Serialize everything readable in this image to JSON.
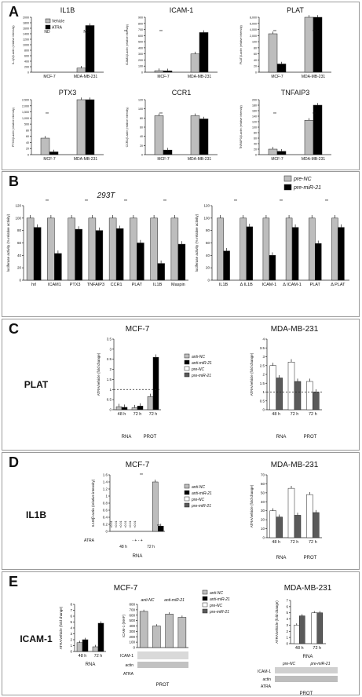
{
  "figure": {
    "panels": [
      {
        "letter": "A"
      },
      {
        "letter": "B"
      },
      {
        "letter": "C"
      },
      {
        "letter": "D"
      },
      {
        "letter": "E"
      }
    ]
  },
  "colors": {
    "grey": "#bdbdbd",
    "black": "#000000",
    "white": "#ffffff",
    "dark": "#5a5a5a"
  },
  "chart_data": [
    {
      "id": "A1",
      "type": "bar",
      "title": "IL1B",
      "ylabel": "IL-1β/β-actin (relative intensity)",
      "categories": [
        "MCF-7",
        "MDA-MB-231"
      ],
      "series": [
        {
          "name": "Vehicle",
          "values": [
            0,
            150
          ]
        },
        {
          "name": "ATRA",
          "values": [
            0,
            1700
          ]
        }
      ],
      "ylim": [
        0,
        2000
      ],
      "yticks": [
        0,
        200,
        400,
        600,
        800,
        1000,
        1200,
        1400,
        1600,
        1800,
        2000
      ],
      "annotations": [
        "ND",
        "ND",
        "**"
      ],
      "legend": "top-left"
    },
    {
      "id": "A2",
      "type": "bar",
      "title": "ICAM-1",
      "ylabel": "ICAM1/β-actin (relative intensity)",
      "categories": [
        "MCF-7",
        "MDA-MB-231"
      ],
      "series": [
        {
          "name": "Vehicle",
          "values": [
            25,
            300
          ]
        },
        {
          "name": "ATRA",
          "values": [
            22,
            650
          ]
        }
      ],
      "ylim": [
        0,
        900
      ],
      "yticks": [
        0,
        100,
        200,
        300,
        400,
        500,
        600,
        700,
        800,
        900
      ],
      "annotations": [
        "**"
      ]
    },
    {
      "id": "A3",
      "type": "bar",
      "title": "PLAT",
      "ylabel": "PLAT/β-actin (relative intensity)",
      "categories": [
        "MCF-7",
        "MDA-MB-231"
      ],
      "series": [
        {
          "name": "Vehicle",
          "values": [
            70,
            2600
          ]
        },
        {
          "name": "ATRA",
          "values": [
            15,
            6600
          ]
        }
      ],
      "yticks": [
        "0",
        "20",
        "40",
        "60",
        "80",
        "100",
        "2,000",
        "4,000",
        "6,000",
        "8,000"
      ],
      "annotations": [
        "**",
        "**"
      ]
    },
    {
      "id": "A4",
      "type": "bar",
      "title": "PTX3",
      "ylabel": "PTX3/β-actin (relative intensity)",
      "categories": [
        "MCF-7",
        "MDA-MB-231"
      ],
      "series": [
        {
          "name": "Vehicle",
          "values": [
            30,
            2000
          ]
        },
        {
          "name": "ATRA",
          "values": [
            5,
            1500
          ]
        }
      ],
      "yticks": [
        "0",
        "20",
        "40",
        "60",
        "80",
        "500",
        "1,000",
        "1,500",
        "2,000",
        "2,500"
      ],
      "annotations": [
        "**"
      ]
    },
    {
      "id": "A5",
      "type": "bar",
      "title": "CCR1",
      "ylabel": "CCR1/β-actin (relative intensity)",
      "categories": [
        "MCF-7",
        "MDA-MB-231"
      ],
      "series": [
        {
          "name": "Vehicle",
          "values": [
            85,
            85
          ]
        },
        {
          "name": "ATRA",
          "values": [
            10,
            78
          ]
        }
      ],
      "ylim": [
        0,
        120
      ],
      "yticks": [
        0,
        20,
        40,
        60,
        80,
        100,
        120
      ],
      "annotations": [
        "**"
      ]
    },
    {
      "id": "A6",
      "type": "bar",
      "title": "TNFAIP3",
      "ylabel": "TNFAIP3/β-actin (relative intensity)",
      "categories": [
        "MCF-7",
        "MDA-MB-231"
      ],
      "series": [
        {
          "name": "Vehicle",
          "values": [
            20,
            125
          ]
        },
        {
          "name": "ATRA",
          "values": [
            12,
            180
          ]
        }
      ],
      "ylim": [
        0,
        200
      ],
      "yticks": [
        0,
        20,
        40,
        60,
        80,
        100,
        120,
        140,
        160,
        180,
        200
      ],
      "annotations": [
        "**",
        "**"
      ]
    },
    {
      "id": "B1",
      "type": "bar",
      "title": "293T",
      "ylabel": "luciferase activity (% relative activity)",
      "categories": [
        "hrl",
        "ICAM1",
        "PTX3",
        "TNFAIP3",
        "CCR1",
        "PLAT",
        "IL1B",
        "Maspin"
      ],
      "series": [
        {
          "name": "pre-NC",
          "values": [
            100,
            100,
            100,
            100,
            100,
            100,
            100,
            100
          ]
        },
        {
          "name": "pre-miR-21",
          "values": [
            85,
            43,
            82,
            80,
            83,
            60,
            27,
            58
          ]
        }
      ],
      "ylim": [
        0,
        120
      ],
      "yticks": [
        0,
        20,
        40,
        60,
        80,
        100,
        120
      ],
      "annotations": [
        "**",
        "**",
        "**",
        "**"
      ]
    },
    {
      "id": "B2",
      "type": "bar",
      "ylabel": "luciferase activity (% relative activity)",
      "categories": [
        "IL1B",
        "Δ IL1B",
        "ICAM-1",
        "Δ ICAM-1",
        "PLAT",
        "Δ PLAT"
      ],
      "series": [
        {
          "name": "pre-NC",
          "values": [
            100,
            100,
            100,
            100,
            100,
            100
          ]
        },
        {
          "name": "pre-miR-21",
          "values": [
            47,
            86,
            40,
            85,
            59,
            85
          ]
        }
      ],
      "ylim": [
        0,
        120
      ],
      "yticks": [
        0,
        20,
        40,
        60,
        80,
        100,
        120
      ],
      "annotations": [
        "**",
        "**",
        "**"
      ],
      "legend_entries": [
        "pre-NC",
        "pre-miR-21"
      ]
    },
    {
      "id": "C1",
      "type": "bar",
      "title": "MCF-7",
      "row_label": "PLAT",
      "ylabel": "ATRA/vehicle (fold change)",
      "categories": [
        "48 h",
        "72 h",
        "72 h"
      ],
      "groups": [
        "RNA",
        "PROT"
      ],
      "series": [
        {
          "name": "anti-NC",
          "values": [
            0.15,
            0.1,
            0.65
          ]
        },
        {
          "name": "anti-miR-21",
          "values": [
            0.12,
            0.18,
            2.6
          ]
        }
      ],
      "ylim": [
        0,
        3.5
      ],
      "yticks": [
        0,
        0.5,
        1,
        1.5,
        2,
        2.5,
        3,
        3.5
      ],
      "annotations": [
        "(**)",
        "(**)"
      ],
      "legend_entries": [
        "anti-NC",
        "anti-miR-21",
        "pre-NC",
        "pre-miR-21"
      ]
    },
    {
      "id": "C2",
      "type": "bar",
      "title": "MDA-MB-231",
      "ylabel": "ATRA/vehicle (fold change)",
      "categories": [
        "48 h",
        "72 h",
        "72 h"
      ],
      "groups": [
        "RNA",
        "PROT"
      ],
      "series": [
        {
          "name": "pre-NC",
          "values": [
            2.5,
            2.7,
            1.6
          ]
        },
        {
          "name": "pre-miR-21",
          "values": [
            1.8,
            1.6,
            1.0
          ]
        }
      ],
      "ylim": [
        0,
        4
      ],
      "yticks": [
        0,
        0.5,
        1,
        1.5,
        2,
        2.5,
        3,
        3.5,
        4
      ],
      "annotations": [
        "(**)",
        "(**)",
        "(**)"
      ]
    },
    {
      "id": "D1",
      "type": "bar",
      "title": "MCF-7",
      "row_label": "IL1B",
      "ylabel": "IL1B/β-actin (relative intensity)",
      "categories": [
        "48 h -",
        "48 h +",
        "72 h -",
        "72 h +"
      ],
      "groups": [
        "RNA"
      ],
      "series": [
        {
          "name": "anti-NC",
          "values": [
            0,
            0,
            0,
            1.4
          ]
        },
        {
          "name": "anti-miR-21",
          "values": [
            0,
            0,
            0,
            0.15
          ]
        }
      ],
      "ylim": [
        0,
        1.6
      ],
      "yticks": [
        0,
        0.2,
        0.4,
        0.6,
        0.8,
        1,
        1.2,
        1.4,
        1.6
      ],
      "annotations": [
        "<0.01",
        "<0.01",
        "<0.01",
        "<0.01",
        "<0.01",
        "<0.01",
        "**",
        "**"
      ],
      "row_headers": [
        "ATRA",
        "- + - +",
        "48 h",
        "72 h",
        "RNA"
      ],
      "legend_entries": [
        "anti-NC",
        "anti-miR-21",
        "pre-NC",
        "pre-miR-21"
      ]
    },
    {
      "id": "D2",
      "type": "bar",
      "title": "MDA-MB-231",
      "ylabel": "ATRA/vehicle (fold change)",
      "categories": [
        "48 h",
        "72 h",
        "72 h"
      ],
      "groups": [
        "RNA",
        "PROT"
      ],
      "series": [
        {
          "name": "pre-NC",
          "values": [
            30,
            55,
            48
          ]
        },
        {
          "name": "pre-miR-21",
          "values": [
            23,
            25,
            28
          ]
        }
      ],
      "ylim": [
        0,
        70
      ],
      "yticks": [
        0,
        10,
        20,
        30,
        40,
        50,
        60,
        70
      ],
      "annotations": [
        "(**)",
        "(**)",
        "(**)"
      ]
    },
    {
      "id": "E1",
      "type": "bar",
      "title": "MCF-7",
      "row_label": "ICAM-1",
      "ylabel": "ATRA/vehicle (fold change)",
      "categories": [
        "48 h",
        "72 h"
      ],
      "groups": [
        "RNA"
      ],
      "series": [
        {
          "name": "anti-NC",
          "values": [
            1.5,
            0.8
          ]
        },
        {
          "name": "anti-miR-21",
          "values": [
            2.0,
            4.8
          ]
        }
      ],
      "ylim": [
        0,
        8
      ],
      "yticks": [
        0,
        1,
        2,
        3,
        4,
        5,
        6,
        7,
        8
      ],
      "annotations": [
        "(**)"
      ]
    },
    {
      "id": "E2",
      "type": "bar",
      "ylabel": "ICAM-1 (MAF)",
      "categories": [
        "- anti-NC",
        "+ anti-NC",
        "- anti-miR-21",
        "+ anti-miR-21"
      ],
      "groups": [
        "PROT"
      ],
      "series": [
        {
          "name": "ICAM-1",
          "values": [
            670,
            400,
            620,
            560
          ]
        }
      ],
      "ylim": [
        0,
        800
      ],
      "yticks": [
        0,
        100,
        200,
        300,
        400,
        500,
        600,
        700,
        800
      ],
      "group_labels": [
        "anti-NC",
        "anti-miR-21"
      ],
      "blot_labels": [
        "ICAM-1",
        "actin"
      ],
      "treatment": "ATRA",
      "legend_entries": [
        "anti-NC",
        "anti-miR-21",
        "pre-NC",
        "pre-miR-21"
      ]
    },
    {
      "id": "E3",
      "type": "bar",
      "title": "MDA-MB-231",
      "ylabel": "ATRA/vehicle (fold change)",
      "categories": [
        "48 h",
        "72 h"
      ],
      "groups": [
        "RNA"
      ],
      "series": [
        {
          "name": "pre-NC",
          "values": [
            3.0,
            5.0
          ]
        },
        {
          "name": "pre-miR-21",
          "values": [
            4.5,
            5.0
          ]
        }
      ],
      "ylim": [
        0,
        7
      ],
      "yticks": [
        0,
        1,
        2,
        3,
        4,
        5,
        6,
        7
      ],
      "group_labels": [
        "pre-NC",
        "pre-miR-21"
      ],
      "blot_labels": [
        "ICAM-1",
        "actin"
      ],
      "treatment": "ATRA",
      "blot_group": "PROT"
    }
  ]
}
